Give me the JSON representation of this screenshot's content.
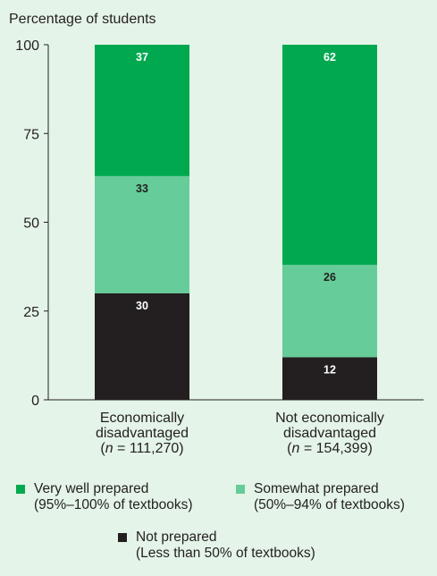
{
  "colors": {
    "very_well": "#00a94f",
    "somewhat": "#66cc99",
    "not_prepared": "#231f20",
    "background": "#e4f4e8"
  },
  "chart_data": {
    "type": "bar",
    "stacked": true,
    "ylabel": "Percentage of students",
    "ylim": [
      0,
      100
    ],
    "yticks": [
      0,
      25,
      50,
      75,
      100
    ],
    "grid": false,
    "legend_position": "bottom",
    "categories": [
      {
        "lines": [
          "Economically",
          "disadvantaged"
        ],
        "n_prefix": "(",
        "n_var": "n",
        "n_eq": " = 111,270)"
      },
      {
        "lines": [
          "Not economically",
          "disadvantaged"
        ],
        "n_prefix": "(",
        "n_var": "n",
        "n_eq": " = 154,399)"
      }
    ],
    "series": [
      {
        "key": "not_prepared",
        "color": "#231f20",
        "label_color": "#ffffff",
        "values": [
          30,
          12
        ]
      },
      {
        "key": "somewhat",
        "color": "#66cc99",
        "label_color": "#231f20",
        "values": [
          33,
          26
        ]
      },
      {
        "key": "very_well",
        "color": "#00a94f",
        "label_color": "#ffffff",
        "values": [
          37,
          62
        ]
      }
    ]
  },
  "legend": {
    "very_well": {
      "line1": "Very well prepared",
      "line2": "(95%–100% of textbooks)"
    },
    "somewhat": {
      "line1": "Somewhat prepared",
      "line2": "(50%–94% of textbooks)"
    },
    "not_prepared": {
      "line1": "Not prepared",
      "line2": "(Less than 50% of textbooks)"
    }
  }
}
